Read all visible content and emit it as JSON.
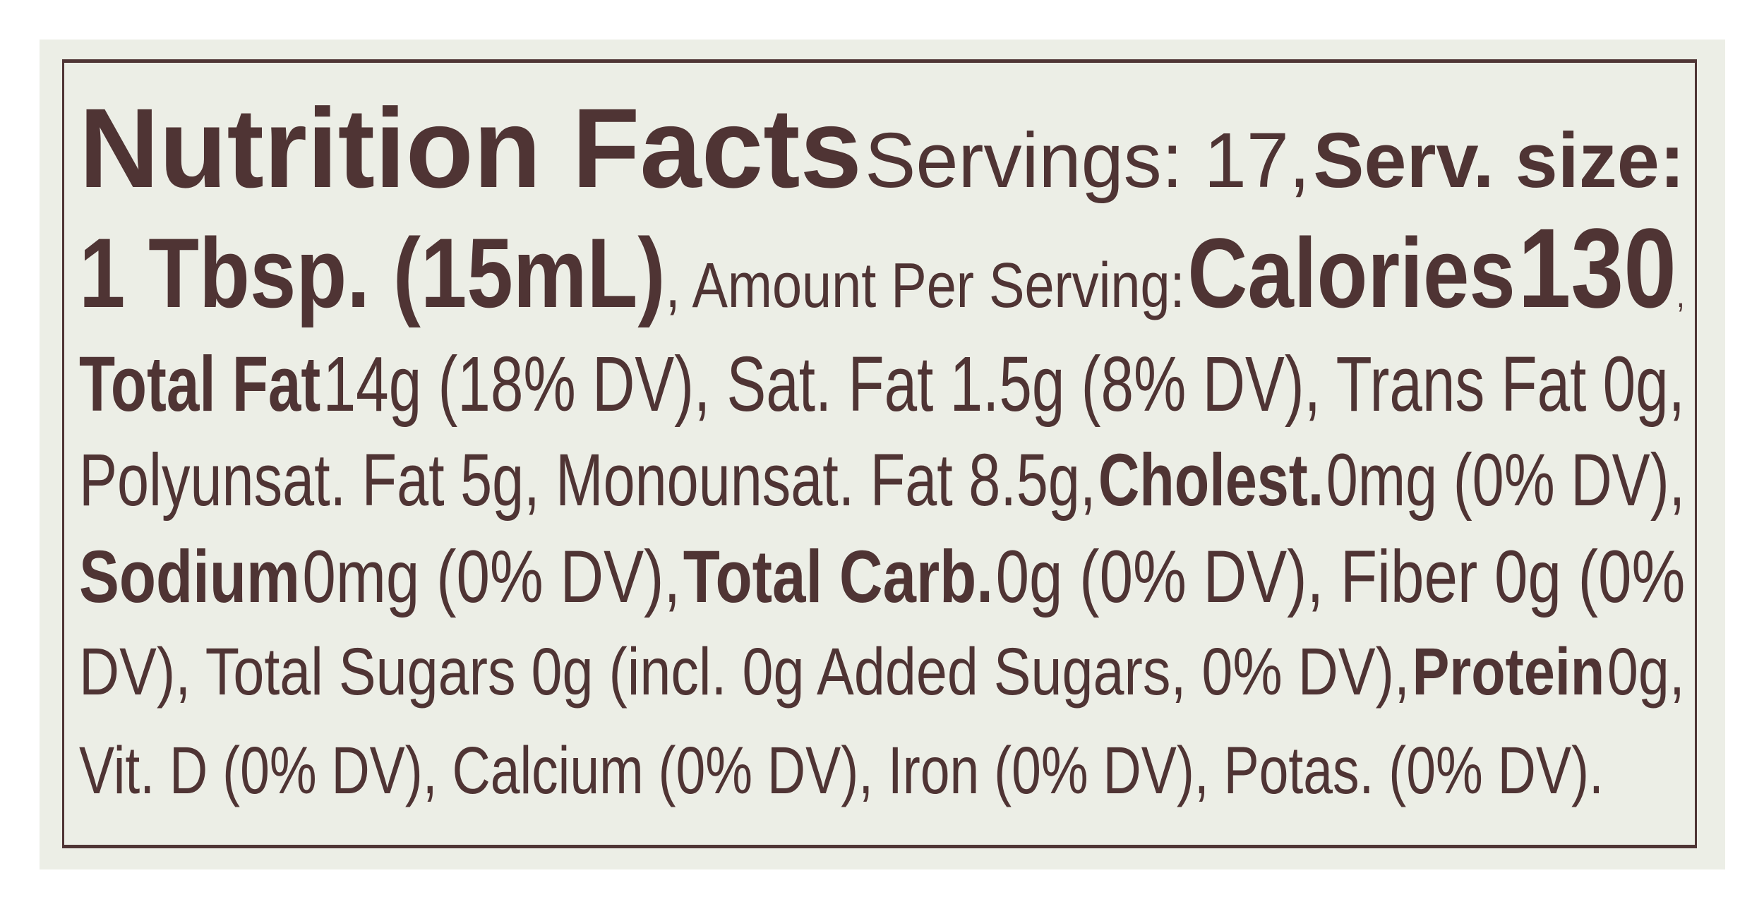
{
  "label": {
    "title": "Nutrition Facts",
    "servings": "Servings: 17,",
    "serv_size_label": "Serv. size:",
    "serv_size_value": "1 Tbsp. (15mL)",
    "amount_per_serving": ", Amount Per Serving:",
    "calories_label": "Calories",
    "calories_value": "130",
    "calories_comma": ",",
    "nutrients": {
      "total_fat_label": "Total Fat",
      "total_fat_value": "14g (18% DV), Sat. Fat 1.5g (8% DV), Trans Fat 0g,",
      "fats_line": "Polyunsat. Fat 5g, Monounsat. Fat 8.5g,",
      "cholest_label": "Cholest.",
      "cholest_value": "0mg (0% DV),",
      "sodium_label": "Sodium",
      "sodium_value": "0mg (0% DV),",
      "carb_label": "Total Carb.",
      "carb_value": "0g (0% DV), Fiber 0g (0%",
      "sugars_line": "DV), Total Sugars 0g (incl. 0g Added Sugars, 0% DV),",
      "protein_label": "Protein",
      "protein_value": "0g,",
      "vitamins_line": "Vit. D (0% DV), Calcium (0% DV), Iron (0% DV), Potas. (0% DV)."
    },
    "text_color": "#4f3434",
    "background_color": "#eceee6"
  }
}
